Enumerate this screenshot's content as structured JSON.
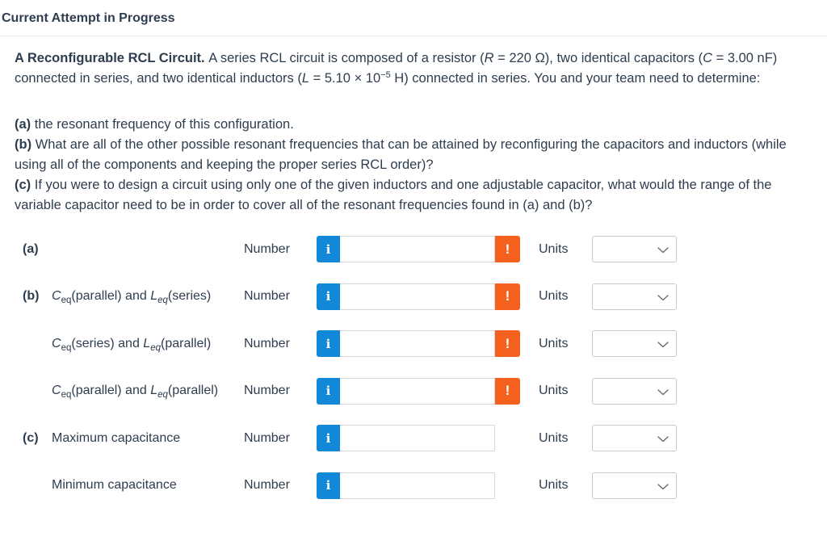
{
  "page": {
    "header": "Current Attempt in Progress"
  },
  "problem": {
    "intro_segments": [
      {
        "t": "A Reconfigurable RCL Circuit. ",
        "s": "bold"
      },
      {
        "t": "A series RCL circuit is composed of a resistor (",
        "s": "plain"
      },
      {
        "t": "R",
        "s": "var"
      },
      {
        "t": " = 220 Ω), two identical capacitors (",
        "s": "plain"
      },
      {
        "t": "C",
        "s": "var"
      },
      {
        "t": " = 3.00 nF) connected in series, and two identical inductors (",
        "s": "plain"
      },
      {
        "t": "L",
        "s": "var"
      },
      {
        "t": " = 5.10 × 10",
        "s": "plain"
      },
      {
        "t": "−5",
        "s": "sup"
      },
      {
        "t": " H) connected in series. You and your team need to determine:",
        "s": "plain"
      }
    ],
    "questions": [
      {
        "label": "(a)",
        "text": " the resonant frequency of this configuration."
      },
      {
        "label": "(b)",
        "text": " What are all of the other possible resonant frequencies that can be attained by reconfiguring the capacitors and inductors (while using all of the components and keeping the proper series RCL order)?"
      },
      {
        "label": "(c)",
        "text": " If you were to design a circuit using only one of the given inductors and one adjustable capacitor, what would the range of the variable capacitor need to be in order to cover all of the resonant frequencies found in (a) and (b)?"
      }
    ]
  },
  "answers": {
    "number_label": "Number",
    "units_label": "Units",
    "info_icon_glyph": "i",
    "warning_icon_glyph": "!",
    "input_value": "",
    "units_selected_value": "",
    "rows": [
      {
        "part": "(a)",
        "config_segments": [],
        "has_warning": true
      },
      {
        "part": "(b)",
        "config_segments": [
          {
            "t": "C",
            "s": "var"
          },
          {
            "t": "eq",
            "s": "sub"
          },
          {
            "t": "(parallel) and ",
            "s": "plain"
          },
          {
            "t": "L",
            "s": "var"
          },
          {
            "t": "eq",
            "s": "subvar"
          },
          {
            "t": "(series)",
            "s": "plain"
          }
        ],
        "has_warning": true
      },
      {
        "part": "",
        "config_segments": [
          {
            "t": "C",
            "s": "var"
          },
          {
            "t": "eq",
            "s": "sub"
          },
          {
            "t": "(series) and ",
            "s": "plain"
          },
          {
            "t": "L",
            "s": "var"
          },
          {
            "t": "eq",
            "s": "subvar"
          },
          {
            "t": "(parallel)",
            "s": "plain"
          }
        ],
        "has_warning": true
      },
      {
        "part": "",
        "config_segments": [
          {
            "t": "C",
            "s": "var"
          },
          {
            "t": "eq",
            "s": "sub"
          },
          {
            "t": "(parallel) and ",
            "s": "plain"
          },
          {
            "t": "L",
            "s": "var"
          },
          {
            "t": "eq",
            "s": "subvar"
          },
          {
            "t": "(parallel)",
            "s": "plain"
          }
        ],
        "has_warning": true
      },
      {
        "part": "(c)",
        "config_segments": [
          {
            "t": "Maximum capacitance",
            "s": "plain"
          }
        ],
        "has_warning": false
      },
      {
        "part": "",
        "config_segments": [
          {
            "t": "Minimum capacitance",
            "s": "plain"
          }
        ],
        "has_warning": false
      }
    ]
  },
  "colors": {
    "text": "#2e3d4f",
    "info_blue": "#1188d8",
    "warning_orange": "#f4611e"
  }
}
